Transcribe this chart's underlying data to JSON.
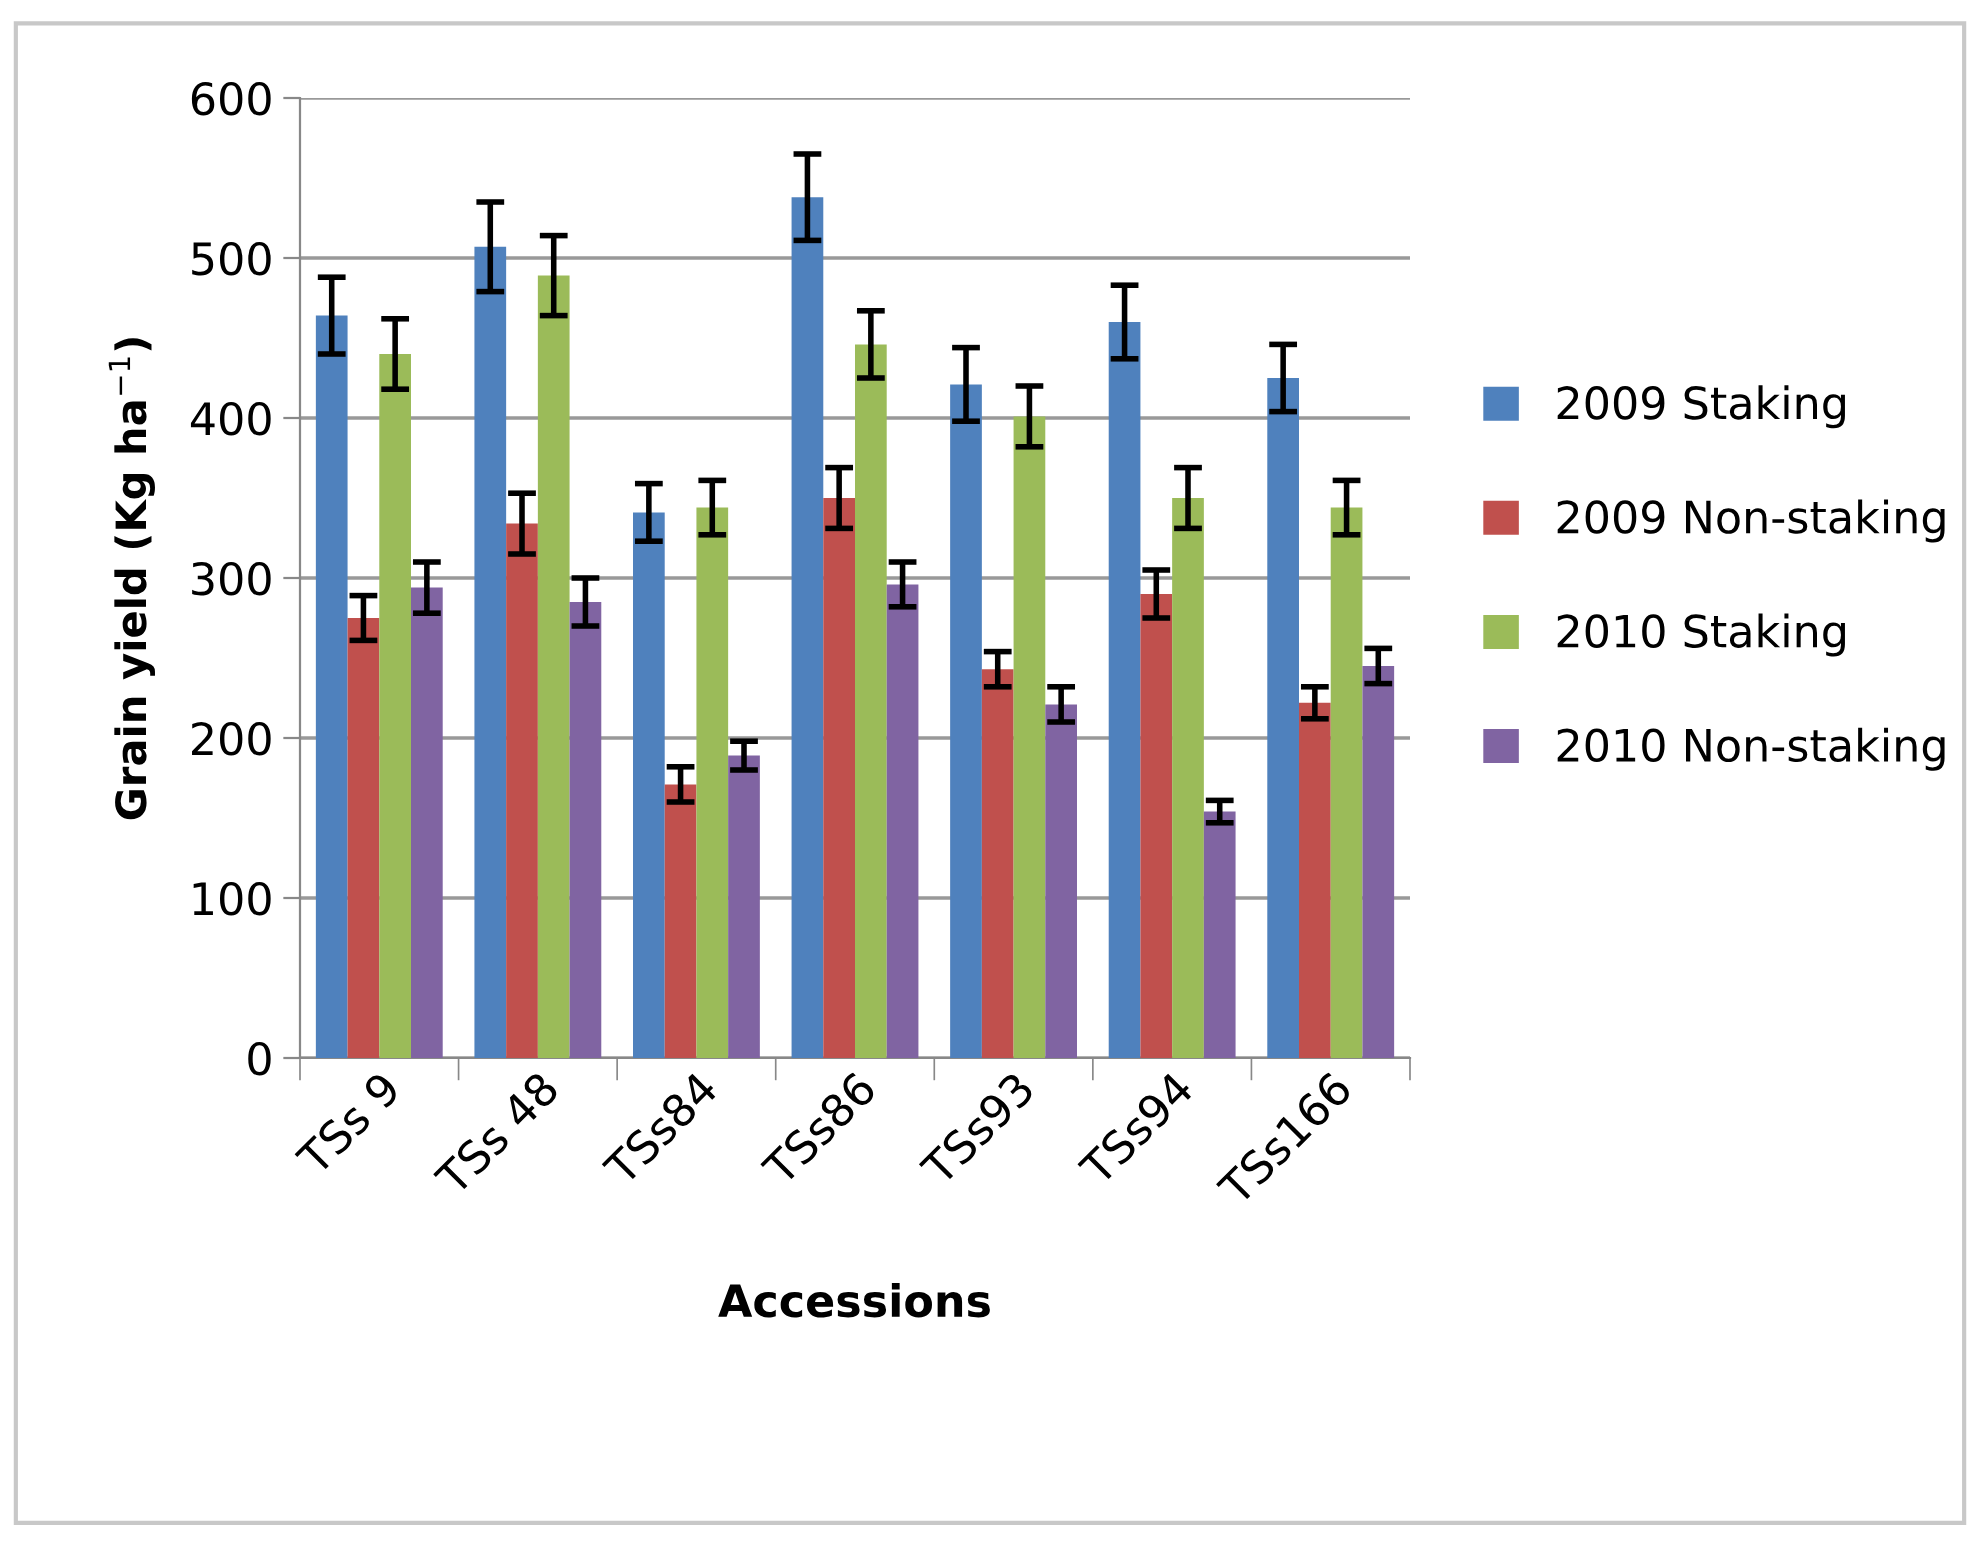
{
  "chart_data": {
    "type": "bar",
    "xlabel": "Accessions",
    "ylabel": "Grain yield (Kg ha$^{−1}$)",
    "categories": [
      "TSs 9",
      "TSs 48",
      "TSs84",
      "TSs86",
      "TSs93",
      "TSs94",
      "TSs166"
    ],
    "series": [
      {
        "name": "2009 Staking",
        "color": "#4f81bd",
        "values": [
          464,
          507,
          341,
          538,
          421,
          460,
          425
        ],
        "errors": [
          24,
          28,
          18,
          27,
          23,
          23,
          21
        ]
      },
      {
        "name": "2009 Non-staking",
        "color": "#c0504d",
        "values": [
          275,
          334,
          171,
          350,
          243,
          290,
          222
        ],
        "errors": [
          14,
          19,
          11,
          19,
          11,
          15,
          10
        ]
      },
      {
        "name": "2010 Staking",
        "color": "#9bbb59",
        "values": [
          440,
          489,
          344,
          446,
          401,
          350,
          344
        ],
        "errors": [
          22,
          25,
          17,
          21,
          19,
          19,
          17
        ]
      },
      {
        "name": "2010 Non-staking",
        "color": "#8064a2",
        "values": [
          294,
          285,
          189,
          296,
          221,
          154,
          245
        ],
        "errors": [
          16,
          15,
          9,
          14,
          11,
          7,
          11
        ]
      }
    ],
    "ylim": [
      0,
      600
    ],
    "yticks": [
      0,
      100,
      200,
      300,
      400,
      500,
      600
    ],
    "grid": "y",
    "legend": "right"
  }
}
